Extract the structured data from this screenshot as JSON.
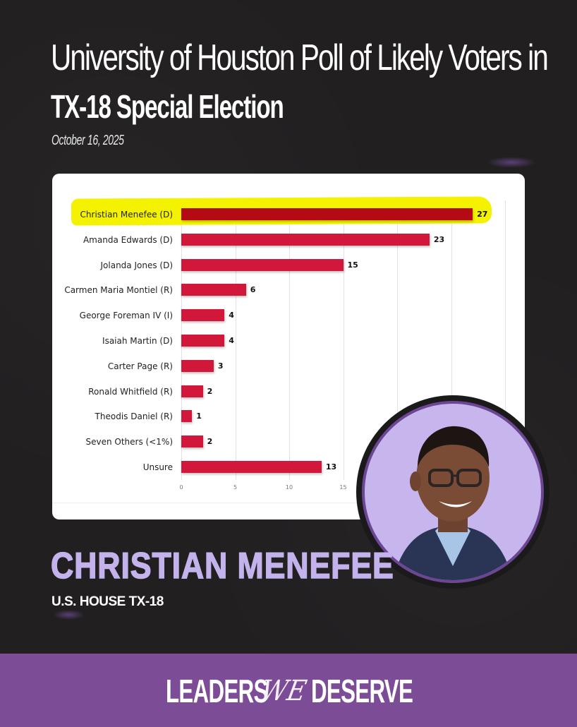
{
  "header": {
    "title_line1": "University of Houston Poll of Likely Voters in",
    "title_line2": "TX-18 Special Election",
    "date": "October 16, 2025"
  },
  "candidate": {
    "name": "CHRISTIAN MENEFEE",
    "office": "U.S. HOUSE TX-18",
    "photo_alt": "candidate-portrait"
  },
  "footer": {
    "brand_left": "LEADERS",
    "brand_mid": "WE",
    "brand_right": "DESERVE"
  },
  "colors": {
    "background": "#211f20",
    "bar": "#d2183a",
    "bar_highlighted": "#b40a14",
    "highlight": "#f5f200",
    "name_lavender": "#c3b2ec",
    "footer_purple": "#7c4c96"
  },
  "chart_data": {
    "type": "bar",
    "orientation": "horizontal",
    "title": "",
    "xlabel": "",
    "ylabel": "",
    "categories": [
      "Christian Menefee (D)",
      "Amanda Edwards (D)",
      "Jolanda Jones (D)",
      "Carmen Maria Montiel (R)",
      "George Foreman IV (I)",
      "Isaiah Martin (D)",
      "Carter Page (R)",
      "Ronald Whitfield (R)",
      "Theodis Daniel (R)",
      "Seven Others (<1%)",
      "Unsure"
    ],
    "values": [
      27,
      23,
      15,
      6,
      4,
      4,
      3,
      2,
      1,
      2,
      13
    ],
    "value_labels": [
      "27",
      "23",
      "15",
      "6",
      "4",
      "4",
      "3",
      "2",
      "1",
      "2",
      "13"
    ],
    "highlighted_category": "Christian Menefee (D)",
    "x_ticks_visible": [
      "0",
      "5",
      "10",
      "15"
    ],
    "xlim": [
      0,
      30
    ],
    "grid": true,
    "legend": "none"
  }
}
